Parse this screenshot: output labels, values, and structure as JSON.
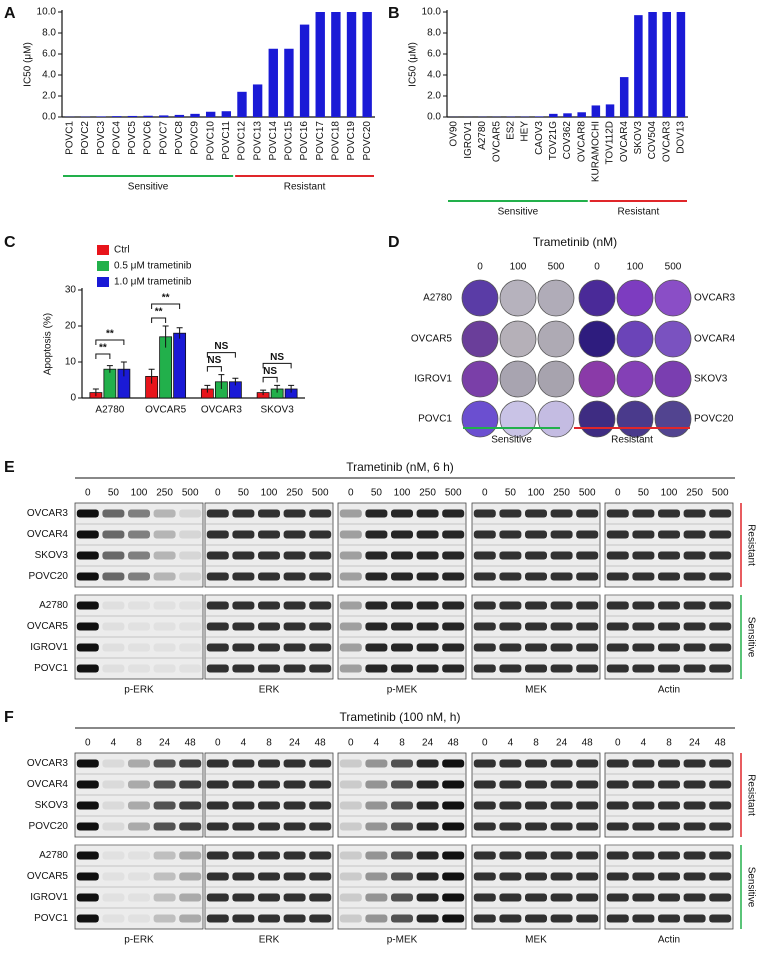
{
  "chart_data": [
    {
      "panel": "A",
      "type": "bar",
      "ylabel": "IC50 (μM)",
      "categories": [
        "POVC1",
        "POVC2",
        "POVC3",
        "POVC4",
        "POVC5",
        "POVC6",
        "POVC7",
        "POVC8",
        "POVC9",
        "POVC10",
        "POVC11",
        "POVC12",
        "POVC13",
        "POVC14",
        "POVC15",
        "POVC16",
        "POVC17",
        "POVC18",
        "POVC19",
        "POVC20"
      ],
      "values": [
        0.02,
        0.03,
        0.05,
        0.08,
        0.1,
        0.12,
        0.15,
        0.2,
        0.3,
        0.5,
        0.55,
        2.4,
        3.1,
        6.5,
        6.5,
        8.8,
        10,
        10,
        10,
        10
      ],
      "color": "#1a1ad6",
      "ylim": [
        0,
        10
      ],
      "yticks": [
        {
          "value": 0,
          "label": "0.0"
        },
        {
          "value": 2,
          "label": "2.0"
        },
        {
          "value": 4,
          "label": "4.0"
        },
        {
          "value": 6,
          "label": "6.0"
        },
        {
          "value": 8,
          "label": "8.0"
        },
        {
          "value": 10,
          "label": "10.0"
        }
      ],
      "groups": [
        {
          "name": "Sensitive",
          "color": "#22b04b"
        },
        {
          "name": "Resistant",
          "color": "#e0262a"
        }
      ]
    },
    {
      "panel": "B",
      "type": "bar",
      "ylabel": "IC50 (μM)",
      "categories": [
        "OV90",
        "IGROV1",
        "A2780",
        "OVCAR5",
        "ES2",
        "HEY",
        "CAOV3",
        "TOV21G",
        "COV362",
        "OVCAR8",
        "KURAMOCHI",
        "TOV112D",
        "OVCAR4",
        "SKOV3",
        "COV504",
        "OVCAR3",
        "DOV13"
      ],
      "values": [
        0.01,
        0.01,
        0.02,
        0.02,
        0.03,
        0.03,
        0.05,
        0.3,
        0.35,
        0.45,
        1.1,
        1.2,
        3.8,
        9.7,
        10,
        10,
        10
      ],
      "color": "#1a1ad6",
      "ylim": [
        0,
        10
      ],
      "yticks": [
        {
          "value": 0,
          "label": "0.0"
        },
        {
          "value": 2,
          "label": "2.0"
        },
        {
          "value": 4,
          "label": "4.0"
        },
        {
          "value": 6,
          "label": "6.0"
        },
        {
          "value": 8,
          "label": "8.0"
        },
        {
          "value": 10,
          "label": "10.0"
        }
      ],
      "groups": [
        {
          "name": "Sensitive",
          "color": "#22b04b"
        },
        {
          "name": "Resistant",
          "color": "#e0262a"
        }
      ]
    },
    {
      "panel": "C",
      "type": "grouped_bar",
      "ylabel": "Apoptosis (%)",
      "categories": [
        "A2780",
        "OVCAR5",
        "OVCAR3",
        "SKOV3"
      ],
      "series": [
        {
          "name": "Ctrl",
          "color": "#e8141b",
          "values": [
            1.5,
            6,
            2.5,
            1.5
          ],
          "errors": [
            1,
            2,
            1,
            0.7
          ]
        },
        {
          "name": "0.5 μM trametinib",
          "color": "#22b04b",
          "values": [
            8,
            17,
            4.5,
            2.5
          ],
          "errors": [
            1,
            3,
            2,
            1
          ]
        },
        {
          "name": "1.0 μM trametinib",
          "color": "#1a1ad6",
          "values": [
            8,
            18,
            4.5,
            2.5
          ],
          "errors": [
            2,
            1.5,
            1,
            1
          ]
        }
      ],
      "annotations": [
        "**",
        "**",
        "**",
        "**",
        "NS",
        "NS",
        "NS",
        "NS"
      ],
      "ylim": [
        0,
        30
      ],
      "yticks": [
        0,
        10,
        20,
        30
      ]
    }
  ],
  "plates": {
    "panel": "D",
    "title": "Trametinib  (nM)",
    "doses": [
      0,
      100,
      500,
      0,
      100,
      500
    ],
    "left_rows": [
      "A2780",
      "OVCAR5",
      "IGROV1",
      "POVC1"
    ],
    "right_rows": [
      "OVCAR3",
      "OVCAR4",
      "SKOV3",
      "POVC20"
    ],
    "groups": [
      {
        "name": "Sensitive",
        "color": "#22b04b"
      },
      {
        "name": "Resistant",
        "color": "#e0262a"
      }
    ]
  },
  "blots_e": {
    "panel": "E",
    "title": "Trametinib  (nM, 6 h)",
    "lanes": [
      0,
      50,
      100,
      250,
      500
    ],
    "rows": [
      "OVCAR3",
      "OVCAR4",
      "SKOV3",
      "POVC20",
      "A2780",
      "OVCAR5",
      "IGROV1",
      "POVC1"
    ],
    "proteins": [
      "p-ERK",
      "ERK",
      "p-MEK",
      "MEK",
      "Actin"
    ],
    "groups": [
      {
        "name": "Resistant",
        "color": "#e0262a"
      },
      {
        "name": "Sensitive",
        "color": "#22b04b"
      }
    ]
  },
  "blots_f": {
    "panel": "F",
    "title": "Trametinib  (100 nM, h)",
    "lanes": [
      0,
      4,
      8,
      24,
      48
    ],
    "rows": [
      "OVCAR3",
      "OVCAR4",
      "SKOV3",
      "POVC20",
      "A2780",
      "OVCAR5",
      "IGROV1",
      "POVC1"
    ],
    "proteins": [
      "p-ERK",
      "ERK",
      "p-MEK",
      "MEK",
      "Actin"
    ],
    "groups": [
      {
        "name": "Resistant",
        "color": "#e0262a"
      },
      {
        "name": "Sensitive",
        "color": "#22b04b"
      }
    ]
  }
}
